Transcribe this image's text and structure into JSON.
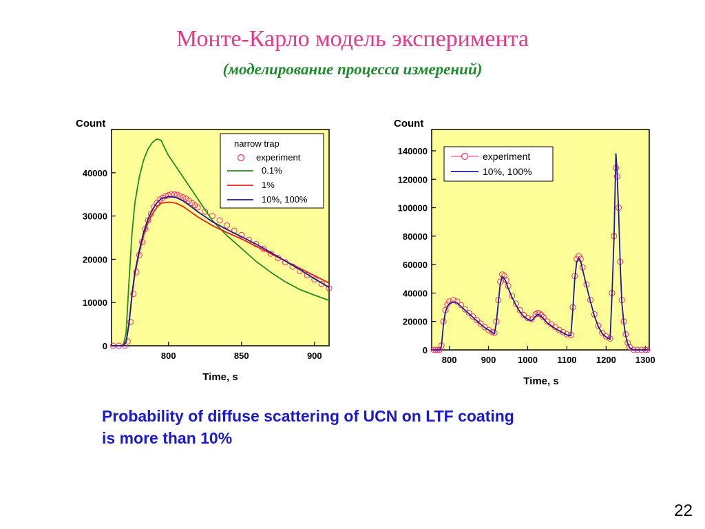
{
  "slide": {
    "title": "Монте-Карло модель эксперимента",
    "subtitle": "(моделирование процесса измерений)",
    "caption_line1": "Probability of diffuse scattering of UCN  on LTF coating",
    "caption_line2": "is more than 10%",
    "page_number": "22"
  },
  "chart_data": [
    {
      "type": "line",
      "xlabel": "Time, s",
      "ylabel": "Count",
      "xlim": [
        761,
        910
      ],
      "ylim": [
        0,
        50000
      ],
      "xticks": [
        800,
        850,
        900
      ],
      "yticks": [
        0,
        10000,
        20000,
        30000,
        40000
      ],
      "plot_background": "#ffff99",
      "legend_title": "narrow trap",
      "legend_position": "top-right",
      "series": [
        {
          "name": "experiment",
          "style": "markers",
          "color": "#ff2a7a",
          "x": [
            762,
            766,
            770,
            772,
            774,
            776,
            778,
            780,
            782,
            784,
            786,
            788,
            790,
            792,
            794,
            796,
            798,
            800,
            802,
            804,
            806,
            808,
            810,
            812,
            814,
            816,
            818,
            820,
            825,
            830,
            835,
            840,
            845,
            850,
            855,
            860,
            865,
            870,
            875,
            880,
            885,
            890,
            895,
            900,
            905,
            910
          ],
          "y": [
            0,
            0,
            0,
            1000,
            5500,
            12000,
            17000,
            21000,
            24000,
            27000,
            29000,
            30500,
            32000,
            33000,
            33800,
            34200,
            34600,
            34800,
            35000,
            35000,
            34900,
            34600,
            34300,
            34000,
            33500,
            33000,
            32500,
            32000,
            31000,
            30000,
            29000,
            27800,
            26600,
            25600,
            24500,
            23500,
            22400,
            21300,
            20300,
            19300,
            18300,
            17300,
            16300,
            15300,
            14300,
            13300
          ]
        },
        {
          "name": "0.1%",
          "style": "line",
          "color": "#228b22",
          "x": [
            762,
            766,
            769,
            771,
            773,
            775,
            777,
            780,
            783,
            786,
            789,
            792,
            795,
            797,
            800,
            805,
            810,
            815,
            820,
            825,
            830,
            840,
            850,
            860,
            870,
            880,
            890,
            900,
            910
          ],
          "y": [
            0,
            0,
            0,
            3000,
            15000,
            26000,
            33000,
            39000,
            43000,
            45500,
            47000,
            47800,
            47500,
            46000,
            44000,
            41500,
            39000,
            36500,
            34000,
            31500,
            29000,
            25500,
            22500,
            19500,
            17000,
            14800,
            13000,
            11700,
            10500
          ]
        },
        {
          "name": "1%",
          "style": "line",
          "color": "#ee1c1c",
          "x": [
            762,
            766,
            769,
            771,
            773,
            775,
            777,
            780,
            783,
            786,
            789,
            792,
            795,
            800,
            805,
            810,
            815,
            820,
            830,
            840,
            850,
            860,
            870,
            880,
            890,
            900,
            910
          ],
          "y": [
            0,
            0,
            0,
            800,
            5000,
            11500,
            16500,
            21500,
            25500,
            28500,
            30500,
            32000,
            33000,
            33200,
            33000,
            32200,
            31000,
            29800,
            27800,
            26200,
            24700,
            23000,
            21300,
            19600,
            17900,
            16200,
            14500
          ]
        },
        {
          "name": "10%, 100%",
          "style": "line",
          "color": "#1a1aa8",
          "x": [
            762,
            766,
            769,
            771,
            773,
            775,
            777,
            780,
            783,
            786,
            789,
            792,
            795,
            800,
            805,
            810,
            815,
            820,
            830,
            840,
            850,
            860,
            870,
            880,
            890,
            900,
            910
          ],
          "y": [
            0,
            0,
            0,
            900,
            5200,
            12000,
            17000,
            22000,
            26300,
            29300,
            31500,
            33000,
            34000,
            34500,
            34300,
            33500,
            32300,
            31000,
            28700,
            26900,
            25200,
            23500,
            21600,
            19600,
            17600,
            15500,
            13500
          ]
        }
      ]
    },
    {
      "type": "line",
      "xlabel": "Time, s",
      "ylabel": "Count",
      "xlim": [
        755,
        1310
      ],
      "ylim": [
        0,
        155000
      ],
      "xticks": [
        800,
        900,
        1000,
        1100,
        1200,
        1300
      ],
      "yticks": [
        0,
        20000,
        40000,
        60000,
        80000,
        100000,
        120000,
        140000
      ],
      "plot_background": "#ffff99",
      "legend_position": "top-left",
      "series": [
        {
          "name": "experiment",
          "style": "markers",
          "color": "#ff2a7a",
          "x": [
            760,
            765,
            770,
            775,
            780,
            785,
            790,
            795,
            800,
            810,
            820,
            830,
            840,
            850,
            860,
            870,
            880,
            890,
            900,
            910,
            915,
            920,
            925,
            930,
            935,
            940,
            945,
            950,
            960,
            970,
            980,
            990,
            1000,
            1010,
            1020,
            1025,
            1030,
            1035,
            1040,
            1050,
            1060,
            1070,
            1080,
            1090,
            1100,
            1110,
            1115,
            1120,
            1125,
            1130,
            1135,
            1140,
            1150,
            1160,
            1170,
            1180,
            1190,
            1200,
            1210,
            1215,
            1220,
            1225,
            1228,
            1232,
            1236,
            1240,
            1245,
            1250,
            1255,
            1260,
            1270,
            1280,
            1290,
            1300,
            1305
          ],
          "y": [
            0,
            0,
            0,
            0,
            3000,
            20000,
            28000,
            32000,
            34000,
            35000,
            34000,
            31500,
            28500,
            26000,
            23500,
            21000,
            18500,
            16000,
            14000,
            12500,
            12000,
            20000,
            35000,
            48000,
            53000,
            52000,
            49000,
            45000,
            38000,
            32500,
            28000,
            24500,
            22500,
            21500,
            25000,
            26000,
            25500,
            24500,
            23000,
            20000,
            18000,
            16000,
            14000,
            12500,
            11000,
            10500,
            30000,
            52000,
            64000,
            66000,
            64000,
            58000,
            46000,
            35000,
            25000,
            17000,
            12000,
            9500,
            8000,
            40000,
            80000,
            128000,
            122000,
            100000,
            62000,
            35000,
            20000,
            11000,
            5000,
            2000,
            0,
            0,
            0,
            0,
            0
          ]
        },
        {
          "name": "10%, 100%",
          "style": "line",
          "color": "#1a1aa8",
          "x": [
            760,
            775,
            780,
            785,
            790,
            795,
            800,
            810,
            820,
            830,
            840,
            850,
            860,
            870,
            880,
            890,
            900,
            910,
            915,
            920,
            925,
            930,
            935,
            940,
            945,
            950,
            960,
            970,
            980,
            990,
            1000,
            1010,
            1020,
            1025,
            1030,
            1035,
            1040,
            1050,
            1060,
            1070,
            1080,
            1090,
            1100,
            1110,
            1115,
            1120,
            1125,
            1130,
            1135,
            1140,
            1150,
            1160,
            1170,
            1180,
            1190,
            1200,
            1210,
            1215,
            1220,
            1225,
            1228,
            1232,
            1236,
            1240,
            1245,
            1250,
            1255,
            1260,
            1270,
            1280,
            1290,
            1300,
            1305
          ],
          "y": [
            0,
            0,
            2500,
            18000,
            26500,
            30500,
            32500,
            33800,
            33000,
            30500,
            28000,
            25500,
            23000,
            20500,
            18000,
            15800,
            14000,
            12000,
            11500,
            19000,
            33000,
            46500,
            51500,
            50500,
            47500,
            43500,
            37000,
            31500,
            27000,
            23500,
            21500,
            20500,
            23500,
            25000,
            24500,
            23500,
            22000,
            19000,
            17000,
            15000,
            13500,
            12000,
            10500,
            10000,
            28000,
            50000,
            62000,
            64500,
            62500,
            56500,
            45000,
            34000,
            24000,
            16500,
            11500,
            9000,
            7500,
            38000,
            78000,
            138000,
            125000,
            96000,
            60000,
            34000,
            19000,
            10000,
            4500,
            1500,
            0,
            0,
            0,
            0,
            0
          ]
        }
      ]
    }
  ]
}
